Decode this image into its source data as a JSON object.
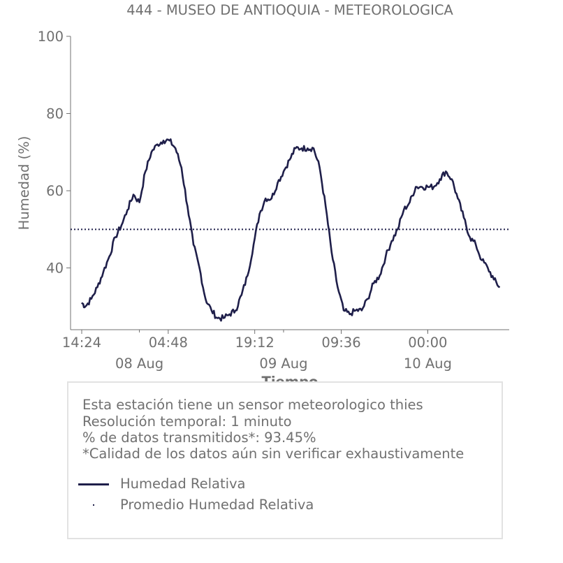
{
  "chart_data": {
    "type": "line",
    "title": "444 - MUSEO DE ANTIOQUIA - METEOROLOGICA",
    "ylabel": "Humedad (%)",
    "xlabel": "Tiempo",
    "ylim": [
      24,
      100
    ],
    "yticks": [
      40,
      60,
      80,
      100
    ],
    "x_start": "2023-08-07 14:24",
    "x_end": "2023-08-10 12:24",
    "xticks": [
      {
        "time": "2023-08-07 14:24",
        "label": "14:24"
      },
      {
        "time": "2023-08-08 04:48",
        "label": "04:48"
      },
      {
        "time": "2023-08-08 19:12",
        "label": "19:12"
      },
      {
        "time": "2023-08-09 09:36",
        "label": "09:36"
      },
      {
        "time": "2023-08-10 00:00",
        "label": "00:00"
      }
    ],
    "day_labels": [
      {
        "time": "2023-08-08 00:00",
        "label": "08 Aug"
      },
      {
        "time": "2023-08-09 00:00",
        "label": "09 Aug"
      },
      {
        "time": "2023-08-10 00:00",
        "label": "10 Aug"
      }
    ],
    "series": [
      {
        "name": "Humedad Relativa",
        "color": "#1f1f4a",
        "points": [
          [
            "2023-08-07 14:24",
            31
          ],
          [
            "2023-08-07 15:00",
            30
          ],
          [
            "2023-08-07 16:00",
            32
          ],
          [
            "2023-08-07 17:00",
            35
          ],
          [
            "2023-08-07 18:00",
            39
          ],
          [
            "2023-08-07 19:00",
            43
          ],
          [
            "2023-08-07 20:00",
            48
          ],
          [
            "2023-08-07 21:00",
            51
          ],
          [
            "2023-08-07 22:00",
            55
          ],
          [
            "2023-08-07 23:00",
            59
          ],
          [
            "2023-08-08 00:00",
            57
          ],
          [
            "2023-08-08 01:00",
            65
          ],
          [
            "2023-08-08 02:00",
            70
          ],
          [
            "2023-08-08 03:00",
            72
          ],
          [
            "2023-08-08 04:00",
            73
          ],
          [
            "2023-08-08 05:00",
            73
          ],
          [
            "2023-08-08 06:00",
            71
          ],
          [
            "2023-08-08 07:00",
            66
          ],
          [
            "2023-08-08 08:00",
            56
          ],
          [
            "2023-08-08 09:00",
            46
          ],
          [
            "2023-08-08 10:00",
            40
          ],
          [
            "2023-08-08 11:00",
            32
          ],
          [
            "2023-08-08 12:00",
            29
          ],
          [
            "2023-08-08 13:00",
            27
          ],
          [
            "2023-08-08 14:00",
            27
          ],
          [
            "2023-08-08 15:00",
            28
          ],
          [
            "2023-08-08 16:00",
            29
          ],
          [
            "2023-08-08 17:00",
            33
          ],
          [
            "2023-08-08 18:00",
            38
          ],
          [
            "2023-08-08 19:00",
            46
          ],
          [
            "2023-08-08 20:00",
            54
          ],
          [
            "2023-08-08 21:00",
            58
          ],
          [
            "2023-08-08 22:00",
            58
          ],
          [
            "2023-08-08 23:00",
            62
          ],
          [
            "2023-08-09 00:00",
            65
          ],
          [
            "2023-08-09 01:00",
            68
          ],
          [
            "2023-08-09 02:00",
            71
          ],
          [
            "2023-08-09 03:00",
            71
          ],
          [
            "2023-08-09 04:00",
            71
          ],
          [
            "2023-08-09 05:00",
            71
          ],
          [
            "2023-08-09 06:00",
            66
          ],
          [
            "2023-08-09 07:00",
            56
          ],
          [
            "2023-08-09 08:00",
            44
          ],
          [
            "2023-08-09 09:00",
            35
          ],
          [
            "2023-08-09 10:00",
            29
          ],
          [
            "2023-08-09 11:00",
            28
          ],
          [
            "2023-08-09 12:00",
            29
          ],
          [
            "2023-08-09 13:00",
            29
          ],
          [
            "2023-08-09 14:00",
            32
          ],
          [
            "2023-08-09 15:00",
            36
          ],
          [
            "2023-08-09 16:00",
            38
          ],
          [
            "2023-08-09 17:00",
            43
          ],
          [
            "2023-08-09 18:00",
            47
          ],
          [
            "2023-08-09 19:00",
            50
          ],
          [
            "2023-08-09 20:00",
            55
          ],
          [
            "2023-08-09 21:00",
            57
          ],
          [
            "2023-08-09 22:00",
            61
          ],
          [
            "2023-08-09 23:00",
            61
          ],
          [
            "2023-08-10 00:00",
            61
          ],
          [
            "2023-08-10 01:00",
            61
          ],
          [
            "2023-08-10 02:00",
            63
          ],
          [
            "2023-08-10 03:00",
            65
          ],
          [
            "2023-08-10 04:00",
            63
          ],
          [
            "2023-08-10 05:00",
            58
          ],
          [
            "2023-08-10 06:00",
            53
          ],
          [
            "2023-08-10 07:00",
            48
          ],
          [
            "2023-08-10 08:00",
            46
          ],
          [
            "2023-08-10 09:00",
            42
          ],
          [
            "2023-08-10 10:00",
            40
          ],
          [
            "2023-08-10 11:00",
            37
          ],
          [
            "2023-08-10 12:00",
            35
          ]
        ]
      },
      {
        "name": "Promedio Humedad Relativa",
        "color": "#1f1f4a",
        "style": "dotted",
        "value": 50
      }
    ]
  },
  "info": {
    "line1": "Esta estación tiene un sensor meteorologico thies",
    "line2": "Resolución temporal: 1 minuto",
    "line3": "% de datos transmitidos*: 93.45%",
    "line4": "*Calidad de los datos aún sin verificar exhaustivamente"
  },
  "legend": {
    "item1": "Humedad Relativa",
    "item2": "Promedio Humedad Relativa"
  },
  "colors": {
    "series": "#1f1f4a",
    "text": "#707070",
    "axis": "#707070",
    "box_border": "#e2e2e2"
  }
}
